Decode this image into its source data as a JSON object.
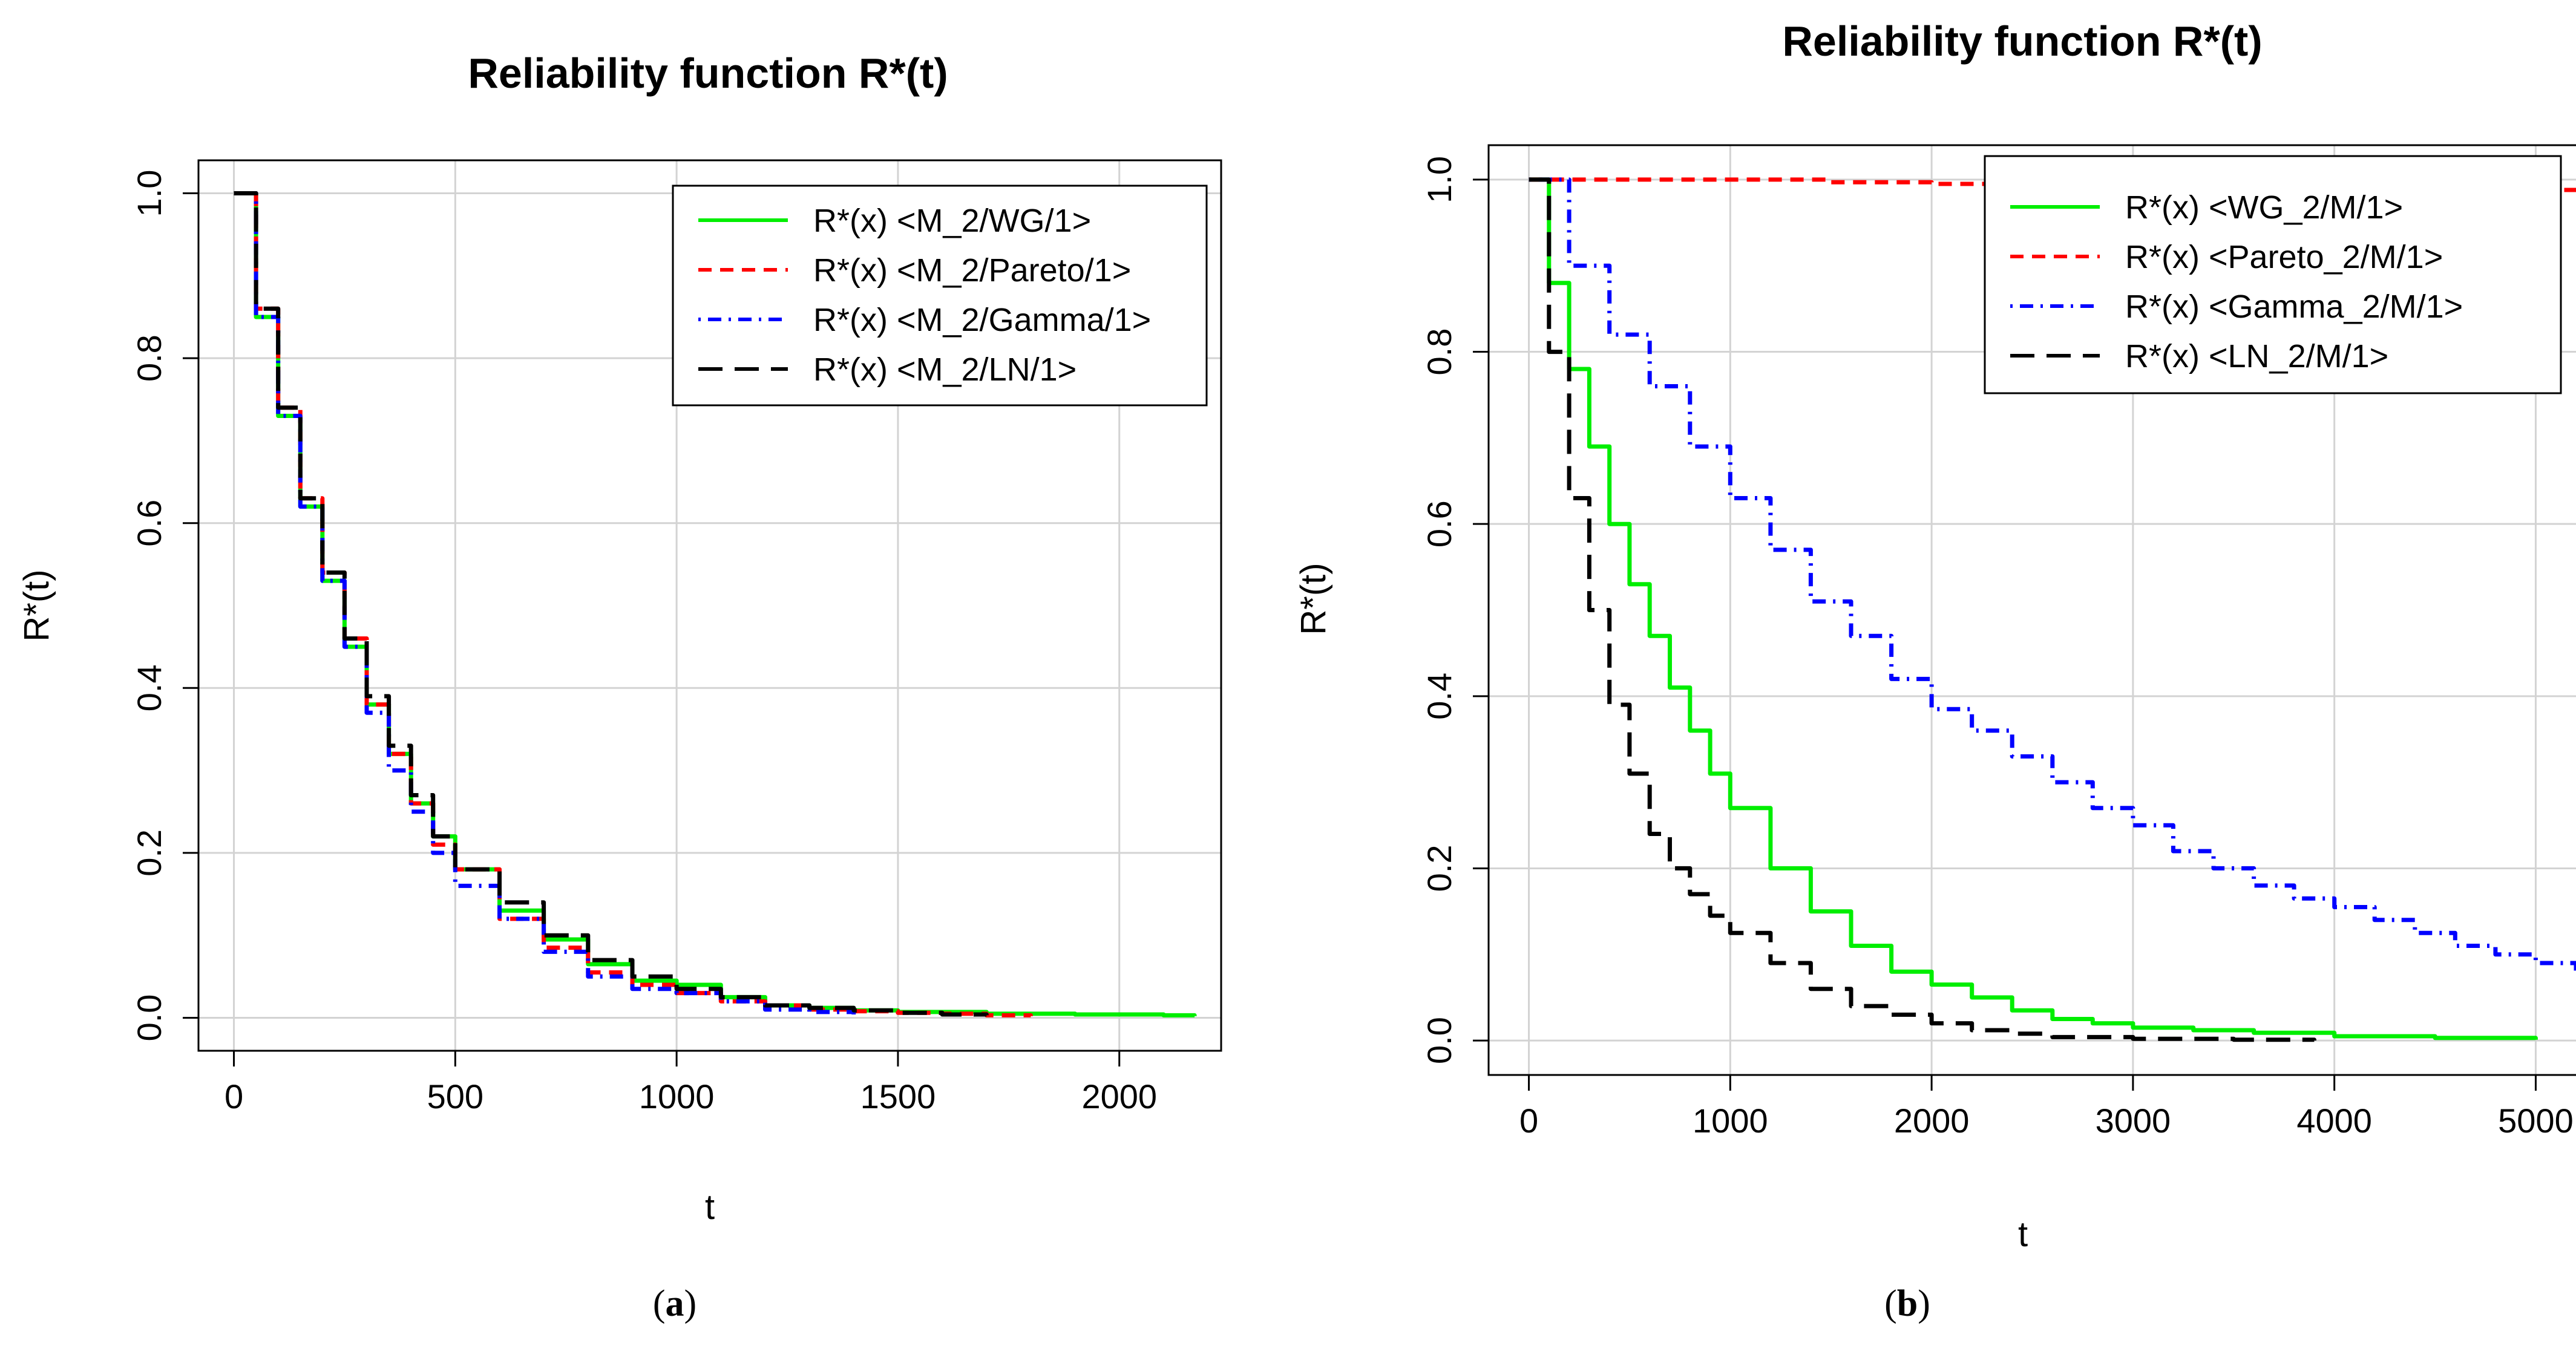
{
  "figure": {
    "captions": {
      "a": "a",
      "b": "b"
    },
    "caption_parens": {
      "open": "(",
      "close": ")"
    }
  },
  "chart_data": [
    {
      "type": "line",
      "title": "Reliability function R*(t)",
      "xlabel": "t",
      "ylabel": "R*(t)",
      "xlim": [
        -80,
        2230
      ],
      "ylim": [
        -0.04,
        1.04
      ],
      "xticks": [
        0,
        500,
        1000,
        1500,
        2000
      ],
      "yticks": [
        0.0,
        0.2,
        0.4,
        0.6,
        0.8,
        1.0
      ],
      "grid": true,
      "legend_position": "top-right",
      "series": [
        {
          "name": "R*(x) <M_2/WG/1>",
          "color": "#00ee00",
          "dash": "solid",
          "x": [
            0,
            50,
            100,
            150,
            200,
            250,
            300,
            350,
            400,
            450,
            500,
            600,
            700,
            800,
            900,
            1000,
            1100,
            1200,
            1300,
            1400,
            1500,
            1700,
            1900,
            2100,
            2170
          ],
          "y": [
            1.0,
            0.85,
            0.73,
            0.62,
            0.53,
            0.45,
            0.38,
            0.32,
            0.26,
            0.22,
            0.18,
            0.13,
            0.095,
            0.065,
            0.045,
            0.04,
            0.025,
            0.015,
            0.012,
            0.009,
            0.007,
            0.005,
            0.004,
            0.003,
            0.002
          ]
        },
        {
          "name": "R*(x) <M_2/Pareto/1>",
          "color": "#ff0000",
          "dash": "short-dash",
          "x": [
            0,
            50,
            100,
            150,
            200,
            250,
            300,
            350,
            400,
            450,
            500,
            600,
            700,
            800,
            900,
            1000,
            1100,
            1200,
            1300,
            1400,
            1500,
            1600,
            1700,
            1800
          ],
          "y": [
            1.0,
            0.86,
            0.74,
            0.63,
            0.54,
            0.46,
            0.38,
            0.32,
            0.26,
            0.21,
            0.18,
            0.12,
            0.085,
            0.055,
            0.04,
            0.03,
            0.02,
            0.015,
            0.01,
            0.008,
            0.006,
            0.005,
            0.003,
            0.002
          ]
        },
        {
          "name": "R*(x) <M_2/Gamma/1>",
          "color": "#0000ff",
          "dash": "dash-dot",
          "x": [
            0,
            50,
            100,
            150,
            200,
            250,
            300,
            350,
            400,
            450,
            500,
            600,
            700,
            800,
            900,
            1000,
            1100,
            1200,
            1300,
            1400
          ],
          "y": [
            1.0,
            0.85,
            0.73,
            0.62,
            0.53,
            0.45,
            0.37,
            0.3,
            0.25,
            0.2,
            0.16,
            0.12,
            0.08,
            0.05,
            0.035,
            0.03,
            0.02,
            0.01,
            0.007,
            0.004
          ]
        },
        {
          "name": "R*(x) <M_2/LN/1>",
          "color": "#000000",
          "dash": "long-dash",
          "x": [
            0,
            50,
            100,
            150,
            200,
            250,
            300,
            350,
            400,
            450,
            500,
            600,
            700,
            800,
            900,
            1000,
            1100,
            1200,
            1300,
            1400,
            1500,
            1600,
            1700
          ],
          "y": [
            1.0,
            0.86,
            0.74,
            0.63,
            0.54,
            0.46,
            0.39,
            0.33,
            0.27,
            0.22,
            0.18,
            0.14,
            0.1,
            0.07,
            0.05,
            0.035,
            0.025,
            0.015,
            0.012,
            0.009,
            0.006,
            0.004,
            0.003
          ]
        }
      ]
    },
    {
      "type": "line",
      "title": "Reliability function R*(t)",
      "xlabel": "t",
      "ylabel": "R*(t)",
      "xlim": [
        -200,
        5200
      ],
      "ylim": [
        -0.04,
        1.04
      ],
      "xticks": [
        0,
        1000,
        2000,
        3000,
        4000,
        5000
      ],
      "yticks": [
        0.0,
        0.2,
        0.4,
        0.6,
        0.8,
        1.0
      ],
      "grid": true,
      "legend_position": "top-right",
      "series": [
        {
          "name": "R*(x) <WG_2/M/1>",
          "color": "#00ee00",
          "dash": "solid",
          "x": [
            0,
            100,
            200,
            300,
            400,
            500,
            600,
            700,
            800,
            900,
            1000,
            1200,
            1400,
            1600,
            1800,
            2000,
            2200,
            2400,
            2600,
            2800,
            3000,
            3300,
            3600,
            4000,
            4500,
            5000
          ],
          "y": [
            1.0,
            0.88,
            0.78,
            0.69,
            0.6,
            0.53,
            0.47,
            0.41,
            0.36,
            0.31,
            0.27,
            0.2,
            0.15,
            0.11,
            0.08,
            0.065,
            0.05,
            0.035,
            0.025,
            0.02,
            0.015,
            0.012,
            0.009,
            0.005,
            0.003,
            0.001
          ]
        },
        {
          "name": "R*(x) <Pareto_2/M/1>",
          "color": "#ff0000",
          "dash": "short-dash",
          "x": [
            0,
            500,
            1000,
            1500,
            2000,
            3000,
            4000,
            5000,
            5200
          ],
          "y": [
            1.0,
            1.0,
            1.0,
            0.997,
            0.995,
            0.993,
            0.99,
            0.988,
            0.988
          ]
        },
        {
          "name": "R*(x) <Gamma_2/M/1>",
          "color": "#0000ff",
          "dash": "dash-dot",
          "x": [
            0,
            200,
            400,
            600,
            800,
            1000,
            1200,
            1400,
            1600,
            1800,
            2000,
            2200,
            2400,
            2600,
            2800,
            3000,
            3200,
            3400,
            3600,
            3800,
            4000,
            4200,
            4400,
            4600,
            4800,
            5000,
            5200
          ],
          "y": [
            1.0,
            0.9,
            0.82,
            0.76,
            0.69,
            0.63,
            0.57,
            0.51,
            0.47,
            0.42,
            0.385,
            0.36,
            0.33,
            0.3,
            0.27,
            0.25,
            0.22,
            0.2,
            0.18,
            0.165,
            0.155,
            0.14,
            0.125,
            0.11,
            0.1,
            0.09,
            0.08
          ]
        },
        {
          "name": "R*(x) <LN_2/M/1>",
          "color": "#000000",
          "dash": "long-dash",
          "x": [
            0,
            100,
            200,
            300,
            400,
            500,
            600,
            700,
            800,
            900,
            1000,
            1200,
            1400,
            1600,
            1800,
            2000,
            2200,
            2400,
            2600,
            3000,
            3500,
            3900
          ],
          "y": [
            1.0,
            0.8,
            0.63,
            0.5,
            0.39,
            0.31,
            0.24,
            0.2,
            0.17,
            0.145,
            0.125,
            0.09,
            0.06,
            0.04,
            0.03,
            0.02,
            0.012,
            0.008,
            0.004,
            0.002,
            0.001,
            0.0
          ]
        }
      ]
    }
  ]
}
